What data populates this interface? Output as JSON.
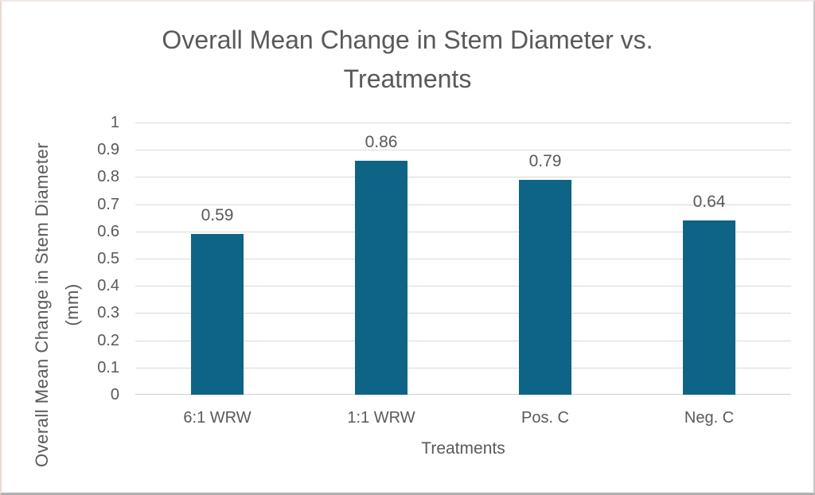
{
  "chart_data": {
    "type": "bar",
    "title": "Overall Mean Change in Stem Diameter vs. Treatments",
    "xlabel": "Treatments",
    "ylabel": "Overall Mean Change in Stem Diameter (mm)",
    "ylabel_lines": [
      "Overall Mean Change in Stem Diameter",
      "(mm)"
    ],
    "categories": [
      "6:1 WRW",
      "1:1 WRW",
      "Pos. C",
      "Neg. C"
    ],
    "values": [
      0.59,
      0.86,
      0.79,
      0.64
    ],
    "data_labels": [
      "0.59",
      "0.86",
      "0.79",
      "0.64"
    ],
    "ylim": [
      0,
      1
    ],
    "yticks": [
      0,
      0.1,
      0.2,
      0.3,
      0.4,
      0.5,
      0.6,
      0.7,
      0.8,
      0.9,
      1
    ],
    "ytick_labels": [
      "0",
      "0.1",
      "0.2",
      "0.3",
      "0.4",
      "0.5",
      "0.6",
      "0.7",
      "0.8",
      "0.9",
      "1"
    ],
    "grid": true,
    "legend": false,
    "bar_color": "#0d6484",
    "text_color": "#595959",
    "gridline_color": "#d9d9d9",
    "axis_line_color": "#d0cece"
  }
}
